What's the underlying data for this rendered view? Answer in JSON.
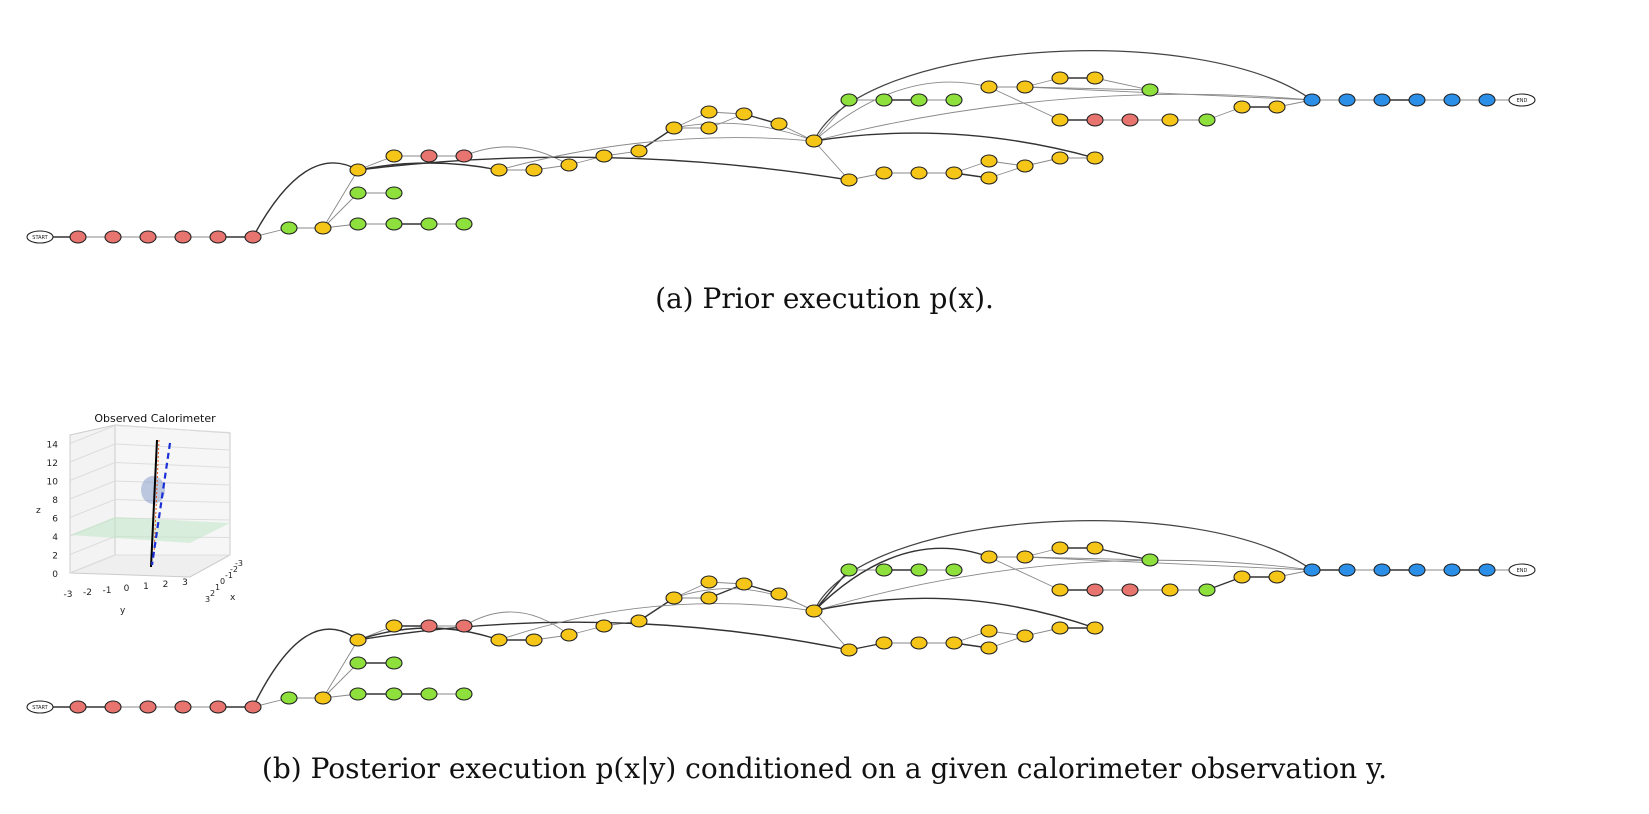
{
  "figure": {
    "caption_a": "(a) Prior execution p(x).",
    "caption_b": "(b) Posterior execution p(x|y) conditioned on a given calorimeter observation y.",
    "inset": {
      "title": "Observed Calorimeter",
      "z_ticks": [
        "0",
        "2",
        "4",
        "6",
        "8",
        "10",
        "12",
        "14"
      ],
      "y_ticks": [
        "-3",
        "-2",
        "-1",
        "0",
        "1",
        "2",
        "3"
      ],
      "x_ticks": [
        "3",
        "2",
        "1",
        "0",
        "-1",
        "-2",
        "-3"
      ],
      "z_label": "z",
      "y_label": "y",
      "x_label": "x"
    }
  },
  "colors": {
    "red": "#e8746f",
    "green": "#8ee03c",
    "yellow": "#f5c518",
    "blue": "#2b8fe8",
    "white": "#ffffff",
    "edge": "#888888"
  },
  "graph": {
    "start_label": "START",
    "end_label": "END"
  }
}
